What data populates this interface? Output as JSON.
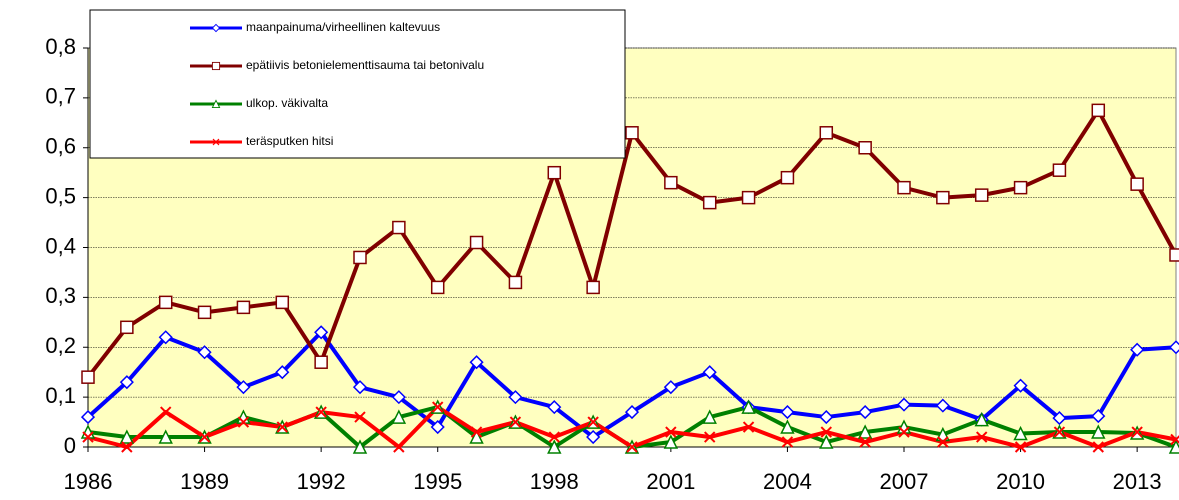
{
  "chart_data": {
    "type": "line",
    "x": [
      1986,
      1987,
      1988,
      1989,
      1990,
      1991,
      1992,
      1993,
      1994,
      1995,
      1996,
      1997,
      1998,
      1999,
      2000,
      2001,
      2002,
      2003,
      2004,
      2005,
      2006,
      2007,
      2008,
      2009,
      2010,
      2011,
      2012,
      2013,
      2014
    ],
    "xlim": [
      1986,
      2014
    ],
    "xticks": [
      1986,
      1989,
      1992,
      1995,
      1998,
      2001,
      2004,
      2007,
      2010,
      2013
    ],
    "ylim": [
      0,
      0.8
    ],
    "yticks": [
      0,
      {
        "value": 0.1,
        "label": "0,1"
      },
      {
        "value": 0.2,
        "label": "0,2"
      },
      {
        "value": 0.3,
        "label": "0,3"
      },
      {
        "value": 0.4,
        "label": "0,4"
      },
      {
        "value": 0.5,
        "label": "0,5"
      },
      {
        "value": 0.6,
        "label": "0,6"
      },
      {
        "value": 0.7,
        "label": "0,7"
      },
      {
        "value": 0.8,
        "label": "0,8"
      }
    ],
    "grid": true,
    "legend": "upper left",
    "series": [
      {
        "name": "maanpainuma/virheellinen kaltevuus",
        "color": "#0000ff",
        "marker": "diamond",
        "values": [
          0.06,
          0.13,
          0.22,
          0.19,
          0.12,
          0.15,
          0.23,
          0.12,
          0.1,
          0.04,
          0.17,
          0.1,
          0.08,
          0.02,
          0.07,
          0.12,
          0.15,
          0.08,
          0.07,
          0.06,
          0.07,
          0.085,
          0.083,
          0.055,
          0.123,
          0.058,
          0.062,
          0.195,
          0.2
        ]
      },
      {
        "name": "epätiivis betonielementtisauma tai betonivalu",
        "color": "#800000",
        "marker": "square",
        "values": [
          0.14,
          0.24,
          0.29,
          0.27,
          0.28,
          0.29,
          0.17,
          0.38,
          0.44,
          0.32,
          0.41,
          0.33,
          0.55,
          0.32,
          0.63,
          0.53,
          0.49,
          0.5,
          0.54,
          0.63,
          0.6,
          0.52,
          0.5,
          0.505,
          0.52,
          0.555,
          0.675,
          0.527,
          0.385
        ]
      },
      {
        "name": "ulkop. väkivalta",
        "color": "#008000",
        "marker": "triangle",
        "values": [
          0.03,
          0.02,
          0.02,
          0.02,
          0.06,
          0.04,
          0.07,
          0.0,
          0.06,
          0.08,
          0.02,
          0.05,
          0.0,
          0.05,
          0.0,
          0.01,
          0.06,
          0.08,
          0.04,
          0.01,
          0.03,
          0.04,
          0.025,
          0.055,
          0.027,
          0.03,
          0.03,
          0.028,
          0.0
        ]
      },
      {
        "name": "teräsputken hitsi",
        "color": "#ff0000",
        "marker": "x",
        "values": [
          0.02,
          0.0,
          0.07,
          0.02,
          0.05,
          0.04,
          0.07,
          0.06,
          0.0,
          0.08,
          0.03,
          0.05,
          0.02,
          0.05,
          0.0,
          0.03,
          0.02,
          0.04,
          0.01,
          0.03,
          0.01,
          0.03,
          0.01,
          0.02,
          0.0,
          0.03,
          0.0,
          0.03,
          0.015
        ]
      }
    ]
  }
}
